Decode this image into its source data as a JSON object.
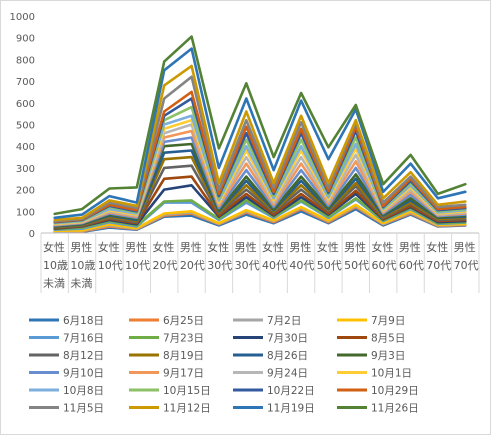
{
  "chart_data": {
    "type": "line",
    "categories": [
      [
        "女性",
        "10歳",
        "未満"
      ],
      [
        "男性",
        "10歳",
        "未満"
      ],
      [
        "女性",
        "10代"
      ],
      [
        "男性",
        "10代"
      ],
      [
        "女性",
        "20代"
      ],
      [
        "男性",
        "20代"
      ],
      [
        "女性",
        "30代"
      ],
      [
        "男性",
        "30代"
      ],
      [
        "女性",
        "40代"
      ],
      [
        "男性",
        "40代"
      ],
      [
        "女性",
        "50代"
      ],
      [
        "男性",
        "50代"
      ],
      [
        "女性",
        "60代"
      ],
      [
        "男性",
        "60代"
      ],
      [
        "女性",
        "70代"
      ],
      [
        "男性",
        "70代"
      ]
    ],
    "ylim": [
      0,
      1000
    ],
    "yticks": [
      0,
      100,
      200,
      300,
      400,
      500,
      600,
      700,
      800,
      900,
      1000
    ],
    "grid": false,
    "legend_position": "bottom",
    "series": [
      {
        "name": "6月18日",
        "color": "#2e75b6",
        "values": [
          5,
          5,
          25,
          15,
          75,
          80,
          35,
          85,
          45,
          100,
          45,
          110,
          35,
          85,
          30,
          35
        ]
      },
      {
        "name": "6月25日",
        "color": "#ed7d31",
        "values": [
          5,
          8,
          30,
          18,
          80,
          90,
          40,
          95,
          50,
          110,
          50,
          120,
          40,
          90,
          32,
          38
        ]
      },
      {
        "name": "7月2日",
        "color": "#a5a5a5",
        "values": [
          8,
          10,
          35,
          20,
          85,
          95,
          42,
          100,
          55,
          115,
          55,
          125,
          42,
          95,
          35,
          40
        ]
      },
      {
        "name": "7月9日",
        "color": "#ffc000",
        "values": [
          10,
          12,
          40,
          22,
          90,
          100,
          45,
          105,
          58,
          120,
          58,
          130,
          45,
          100,
          38,
          42
        ]
      },
      {
        "name": "7月16日",
        "color": "#5b9bd5",
        "values": [
          15,
          20,
          50,
          30,
          140,
          140,
          60,
          140,
          70,
          145,
          70,
          155,
          55,
          110,
          42,
          48
        ]
      },
      {
        "name": "7月23日",
        "color": "#70ad47",
        "values": [
          18,
          25,
          55,
          35,
          145,
          150,
          65,
          150,
          75,
          150,
          75,
          160,
          58,
          115,
          45,
          50
        ]
      },
      {
        "name": "7月30日",
        "color": "#264478",
        "values": [
          20,
          30,
          60,
          40,
          200,
          220,
          75,
          165,
          80,
          165,
          85,
          180,
          62,
          120,
          50,
          55
        ]
      },
      {
        "name": "8月5日",
        "color": "#9e480e",
        "values": [
          22,
          32,
          65,
          45,
          250,
          260,
          80,
          180,
          85,
          180,
          90,
          195,
          65,
          125,
          55,
          60
        ]
      },
      {
        "name": "8月12日",
        "color": "#636363",
        "values": [
          25,
          35,
          70,
          50,
          300,
          310,
          90,
          200,
          95,
          200,
          100,
          215,
          70,
          135,
          60,
          65
        ]
      },
      {
        "name": "8月19日",
        "color": "#997300",
        "values": [
          28,
          38,
          75,
          55,
          340,
          350,
          95,
          220,
          100,
          220,
          105,
          230,
          75,
          140,
          65,
          70
        ]
      },
      {
        "name": "8月26日",
        "color": "#255e91",
        "values": [
          30,
          40,
          80,
          60,
          370,
          380,
          100,
          240,
          105,
          240,
          110,
          250,
          80,
          150,
          70,
          75
        ]
      },
      {
        "name": "9月3日",
        "color": "#43682b",
        "values": [
          32,
          42,
          85,
          65,
          400,
          410,
          105,
          260,
          110,
          260,
          115,
          270,
          85,
          160,
          72,
          80
        ]
      },
      {
        "name": "9月10日",
        "color": "#698ed0",
        "values": [
          35,
          45,
          90,
          70,
          420,
          440,
          115,
          290,
          120,
          290,
          125,
          300,
          90,
          175,
          78,
          85
        ]
      },
      {
        "name": "9月17日",
        "color": "#f1975a",
        "values": [
          38,
          48,
          95,
          75,
          440,
          470,
          125,
          320,
          130,
          320,
          135,
          330,
          95,
          190,
          82,
          90
        ]
      },
      {
        "name": "9月24日",
        "color": "#b7b7b7",
        "values": [
          40,
          50,
          100,
          80,
          460,
          500,
          135,
          350,
          140,
          350,
          145,
          360,
          100,
          200,
          85,
          95
        ]
      },
      {
        "name": "10月1日",
        "color": "#ffcd33",
        "values": [
          42,
          52,
          105,
          85,
          480,
          520,
          140,
          380,
          150,
          380,
          155,
          390,
          105,
          210,
          90,
          100
        ]
      },
      {
        "name": "10月8日",
        "color": "#7cafdd",
        "values": [
          45,
          55,
          110,
          90,
          500,
          540,
          150,
          400,
          160,
          400,
          165,
          410,
          110,
          220,
          95,
          105
        ]
      },
      {
        "name": "10月15日",
        "color": "#8cc168",
        "values": [
          48,
          58,
          120,
          95,
          520,
          580,
          160,
          430,
          170,
          430,
          175,
          440,
          115,
          230,
          100,
          110
        ]
      },
      {
        "name": "10月22日",
        "color": "#335aa1",
        "values": [
          50,
          60,
          125,
          100,
          540,
          620,
          170,
          460,
          180,
          460,
          185,
          470,
          120,
          240,
          105,
          115
        ]
      },
      {
        "name": "10月29日",
        "color": "#d26012",
        "values": [
          52,
          62,
          130,
          105,
          560,
          650,
          180,
          490,
          190,
          480,
          195,
          490,
          125,
          250,
          110,
          120
        ]
      },
      {
        "name": "11月5日",
        "color": "#848484",
        "values": [
          55,
          65,
          140,
          115,
          620,
          720,
          200,
          520,
          210,
          510,
          210,
          510,
          140,
          260,
          120,
          130
        ]
      },
      {
        "name": "11月12日",
        "color": "#cc9a00",
        "values": [
          60,
          70,
          150,
          125,
          680,
          770,
          230,
          560,
          230,
          540,
          230,
          520,
          160,
          280,
          130,
          145
        ]
      },
      {
        "name": "11月19日",
        "color": "#2e75b6",
        "values": [
          70,
          85,
          170,
          140,
          750,
          850,
          300,
          620,
          290,
          610,
          340,
          570,
          190,
          320,
          160,
          190
        ]
      },
      {
        "name": "11月26日",
        "color": "#548235",
        "values": [
          88,
          110,
          205,
          210,
          790,
          905,
          390,
          690,
          350,
          645,
          395,
          590,
          225,
          360,
          180,
          225
        ]
      }
    ]
  }
}
